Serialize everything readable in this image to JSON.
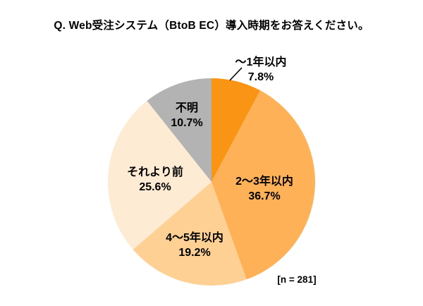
{
  "chart_data": {
    "type": "pie",
    "title": "Q. Web受注システム（BtoB EC）導入時期をお答えください。",
    "labels": [
      "～1年以内",
      "2～3年以内",
      "4～5年以内",
      "それより前",
      "不明"
    ],
    "values": [
      7.8,
      36.7,
      19.2,
      25.6,
      10.7
    ],
    "value_labels": [
      "7.8%",
      "36.7%",
      "19.2%",
      "25.6%",
      "10.7%"
    ],
    "colors": [
      "#FA9414",
      "#FFB157",
      "#FFD094",
      "#FEEBD4",
      "#B3B3B3"
    ],
    "start_angle_deg": 0,
    "direction": "clockwise",
    "legend": "none",
    "note": "[n = 281]"
  }
}
